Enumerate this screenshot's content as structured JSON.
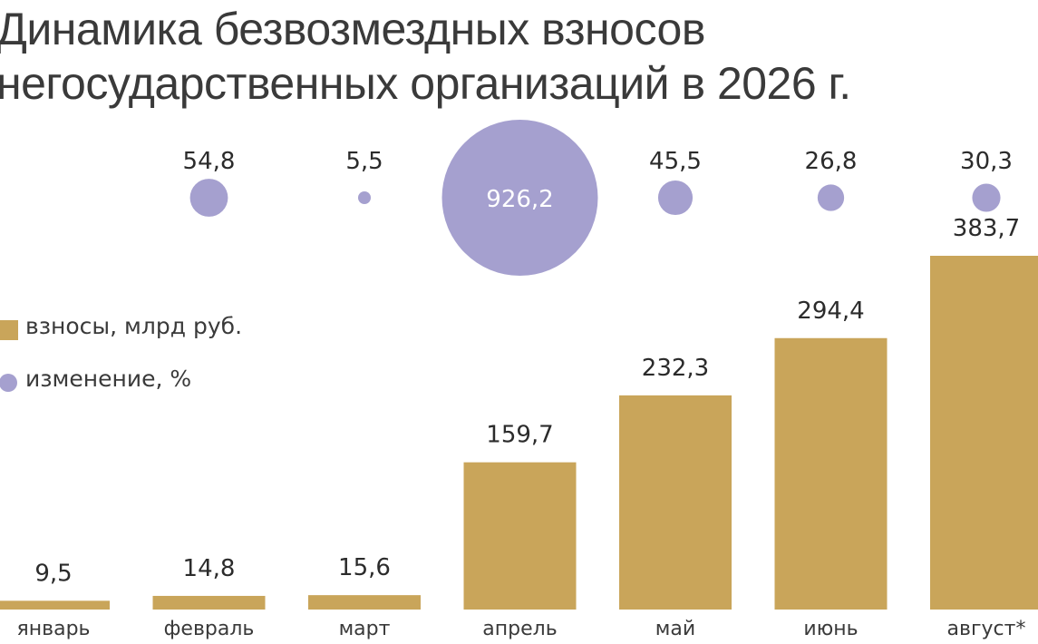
{
  "title_lines": [
    "Динамика безвозмездных взносов",
    "негосударственных организаций в 2026 г."
  ],
  "legend": {
    "bars_label": "взносы, млрд руб.",
    "bubbles_label": "изменение, %"
  },
  "colors": {
    "bar": "#c9a55a",
    "bubble": "#a5a0cf"
  },
  "chart_data": {
    "type": "bar",
    "title": "Динамика безвозмездных взносов негосударственных организаций в 2026 г.",
    "categories": [
      "январь",
      "февраль",
      "март",
      "апрель",
      "май",
      "июнь",
      "август*"
    ],
    "series": [
      {
        "name": "взносы, млрд руб.",
        "type": "bar",
        "values": [
          9.5,
          14.8,
          15.6,
          159.7,
          232.3,
          294.4,
          383.7
        ],
        "labels": [
          "9,5",
          "14,8",
          "15,6",
          "159,7",
          "232,3",
          "294,4",
          "383,7"
        ]
      },
      {
        "name": "изменение, %",
        "type": "bubble",
        "values": [
          null,
          54.8,
          5.5,
          926.2,
          45.5,
          26.8,
          30.3
        ],
        "labels": [
          "",
          "54,8",
          "5,5",
          "926,2",
          "45,5",
          "26,8",
          "30,3"
        ]
      }
    ],
    "grid": false,
    "legend_position": "left"
  }
}
